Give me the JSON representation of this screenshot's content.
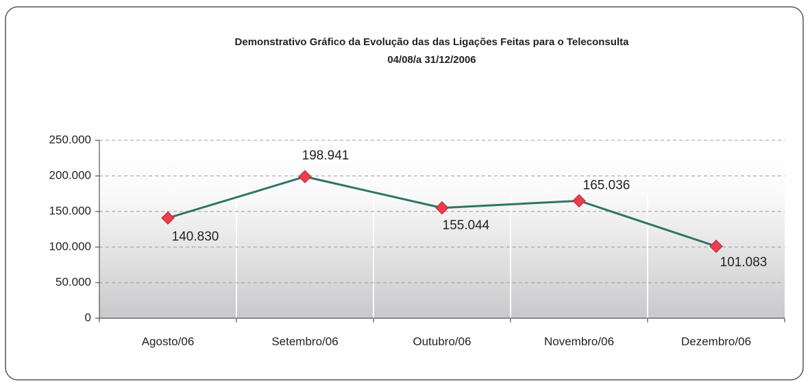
{
  "chart_data": {
    "type": "line",
    "title": "Demonstrativo Gráfico da Evolução das das Ligações Feitas para o Teleconsulta",
    "subtitle": "04/08/a 31/12/2006",
    "categories": [
      "Agosto/06",
      "Setembro/06",
      "Outubro/06",
      "Novembro/06",
      "Dezembro/06"
    ],
    "values": [
      140830,
      198941,
      155044,
      165036,
      101083
    ],
    "value_labels": [
      "140.830",
      "198.941",
      "155.044",
      "165.036",
      "101.083"
    ],
    "color": "#2f7466",
    "marker_color": "#e8404f",
    "ylim": [
      0,
      250000
    ],
    "yticks": [
      0,
      {
        "value": 50000,
        "label": "50.000"
      },
      {
        "value": 100000,
        "label": "100.000"
      },
      {
        "value": 150000,
        "label": "150.000"
      },
      {
        "value": 200000,
        "label": "200.000"
      },
      {
        "value": 250000,
        "label": "250.000"
      }
    ],
    "grid": true
  }
}
